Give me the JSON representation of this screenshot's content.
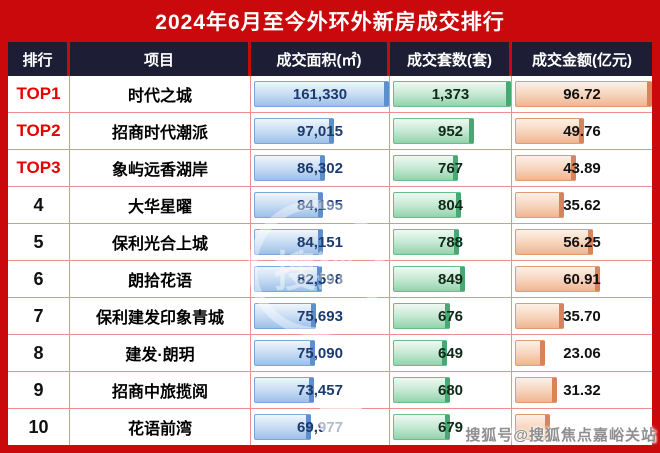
{
  "title": "2024年6月至今外环外新房成交排行",
  "center_watermark": "搜狐",
  "watermark": "搜狐号@搜狐焦点嘉峪关站",
  "colors": {
    "frame_red": "#c9090b",
    "header_navy": "#1d1d35",
    "top_rank_red": "#e60000",
    "grid_pink": "#ee8f8f",
    "area_bar_blue": "#9dc0e8",
    "units_bar_green": "#93d2ab",
    "amount_bar_orange": "#efb592"
  },
  "table": {
    "headers": [
      "排行",
      "项目",
      "成交面积(㎡)",
      "成交套数(套)",
      "成交金额(亿元)"
    ],
    "max": {
      "area": 161330,
      "units": 1373,
      "amount": 96.72
    },
    "rows": [
      {
        "rank": "TOP1",
        "top": true,
        "project": "时代之城",
        "area": "161,330",
        "area_v": 161330,
        "units": "1,373",
        "units_v": 1373,
        "amount": "96.72",
        "amount_v": 96.72
      },
      {
        "rank": "TOP2",
        "top": true,
        "project": "招商时代潮派",
        "area": "97,015",
        "area_v": 97015,
        "units": "952",
        "units_v": 952,
        "amount": "49.76",
        "amount_v": 49.76
      },
      {
        "rank": "TOP3",
        "top": true,
        "project": "象屿远香湖岸",
        "area": "86,302",
        "area_v": 86302,
        "units": "767",
        "units_v": 767,
        "amount": "43.89",
        "amount_v": 43.89
      },
      {
        "rank": "4",
        "top": false,
        "project": "大华星曜",
        "area": "84,195",
        "area_v": 84195,
        "units": "804",
        "units_v": 804,
        "amount": "35.62",
        "amount_v": 35.62
      },
      {
        "rank": "5",
        "top": false,
        "project": "保利光合上城",
        "area": "84,151",
        "area_v": 84151,
        "units": "788",
        "units_v": 788,
        "amount": "56.25",
        "amount_v": 56.25
      },
      {
        "rank": "6",
        "top": false,
        "project": "朗拾花语",
        "area": "82,598",
        "area_v": 82598,
        "units": "849",
        "units_v": 849,
        "amount": "60.91",
        "amount_v": 60.91
      },
      {
        "rank": "7",
        "top": false,
        "project": "保利建发印象青城",
        "area": "75,693",
        "area_v": 75693,
        "units": "676",
        "units_v": 676,
        "amount": "35.70",
        "amount_v": 35.7
      },
      {
        "rank": "8",
        "top": false,
        "project": "建发·朗玥",
        "area": "75,090",
        "area_v": 75090,
        "units": "649",
        "units_v": 649,
        "amount": "23.06",
        "amount_v": 23.06
      },
      {
        "rank": "9",
        "top": false,
        "project": "招商中旅揽阅",
        "area": "73,457",
        "area_v": 73457,
        "units": "680",
        "units_v": 680,
        "amount": "31.32",
        "amount_v": 31.32
      },
      {
        "rank": "10",
        "top": false,
        "project": "花语前湾",
        "area": "69,977",
        "area_v": 69977,
        "units": "679",
        "units_v": 679,
        "amount": "",
        "amount_v": null,
        "amount_bar_est": 27
      }
    ]
  },
  "chart_data": {
    "type": "table",
    "title": "2024年6月至今外环外新房成交排行",
    "columns": [
      "排行",
      "项目",
      "成交面积(㎡)",
      "成交套数(套)",
      "成交金额(亿元)"
    ],
    "rows": [
      [
        "TOP1",
        "时代之城",
        161330,
        1373,
        96.72
      ],
      [
        "TOP2",
        "招商时代潮派",
        97015,
        952,
        49.76
      ],
      [
        "TOP3",
        "象屿远香湖岸",
        86302,
        767,
        43.89
      ],
      [
        "4",
        "大华星曜",
        84195,
        804,
        35.62
      ],
      [
        "5",
        "保利光合上城",
        84151,
        788,
        56.25
      ],
      [
        "6",
        "朗拾花语",
        82598,
        849,
        60.91
      ],
      [
        "7",
        "保利建发印象青城",
        75693,
        676,
        35.7
      ],
      [
        "8",
        "建发·朗玥",
        75090,
        649,
        23.06
      ],
      [
        "9",
        "招商中旅揽阅",
        73457,
        680,
        31.32
      ],
      [
        "10",
        "花语前湾",
        69977,
        679,
        null
      ]
    ],
    "notes": "每个数值单元格内含与数值成比例的条形；第10行成交金额被右下角水印遮挡",
    "bar_scales": {
      "成交面积(㎡)": 161330,
      "成交套数(套)": 1373,
      "成交金额(亿元)": 96.72
    }
  }
}
